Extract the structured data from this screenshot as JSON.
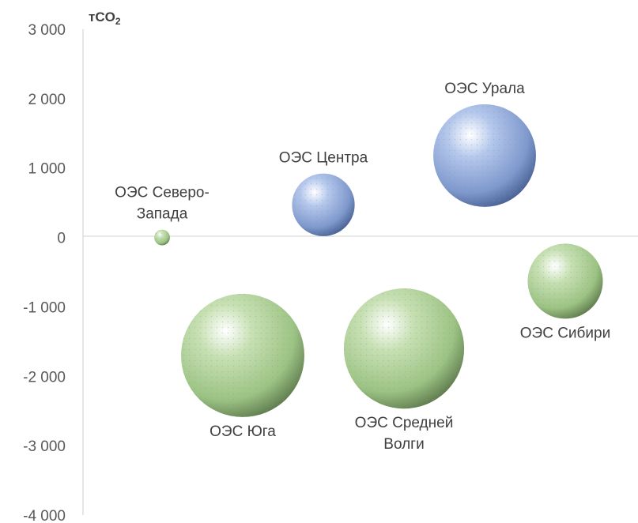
{
  "chart_data": {
    "type": "bubble",
    "y_unit": {
      "main": "тCO",
      "sub": "2"
    },
    "ylim": [
      -4000,
      3000
    ],
    "y_ticks": [
      3000,
      2000,
      1000,
      0,
      -1000,
      -2000,
      -3000,
      -4000
    ],
    "y_tick_labels": [
      "3 000",
      "2 000",
      "1 000",
      "0",
      "-1 000",
      "-2 000",
      "-3 000",
      "-4 000"
    ],
    "gridlines": false,
    "legend": "none",
    "colors": {
      "positive": "#8ea9db",
      "negative": "#a9d18e"
    },
    "points": [
      {
        "label": "ОЭС Северо-\nЗапада",
        "x": 1,
        "y": 0,
        "size": 1,
        "label_position": "above"
      },
      {
        "label": "ОЭС Центра",
        "x": 2,
        "y": 470,
        "size": 16,
        "label_position": "above"
      },
      {
        "label": "ОЭС Урала",
        "x": 3,
        "y": 1180,
        "size": 43,
        "label_position": "above"
      },
      {
        "label": "ОЭС Юга",
        "x": 1.5,
        "y": -1700,
        "size": 62,
        "label_position": "below"
      },
      {
        "label": "ОЭС Средней\nВолги",
        "x": 2.5,
        "y": -1600,
        "size": 59,
        "label_position": "below"
      },
      {
        "label": "ОЭС Сибири",
        "x": 3.5,
        "y": -630,
        "size": 23,
        "label_position": "below"
      }
    ]
  }
}
